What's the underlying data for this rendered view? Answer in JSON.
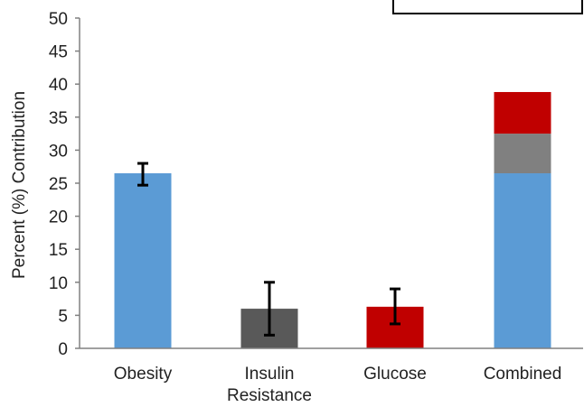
{
  "chart_data": {
    "type": "bar",
    "ylabel": "Percent  (%) Contribution",
    "ylim": [
      0,
      50
    ],
    "yticks": [
      "0",
      "5",
      "10",
      "15",
      "20",
      "25",
      "30",
      "35",
      "40",
      "45",
      "50"
    ],
    "categories": [
      {
        "lines": [
          "Obesity"
        ]
      },
      {
        "lines": [
          "Insulin",
          "Resistance"
        ]
      },
      {
        "lines": [
          "Glucose"
        ]
      },
      {
        "lines": [
          "Combined"
        ]
      }
    ],
    "bars": [
      {
        "category": 0,
        "value": 26.5,
        "color": "#5b9bd5",
        "error": [
          24.7,
          28.0
        ]
      },
      {
        "category": 1,
        "value": 6.0,
        "color": "#595959",
        "error": [
          2.0,
          10.0
        ]
      },
      {
        "category": 2,
        "value": 6.3,
        "color": "#c00000",
        "error": [
          3.7,
          9.0
        ]
      }
    ],
    "stacked_bar": {
      "category": 3,
      "segments": [
        {
          "value": 26.5,
          "color": "#5b9bd5"
        },
        {
          "value": 6.0,
          "color": "#808080"
        },
        {
          "value": 6.3,
          "color": "#c00000"
        }
      ]
    },
    "grid": false,
    "legend": "top-right"
  }
}
